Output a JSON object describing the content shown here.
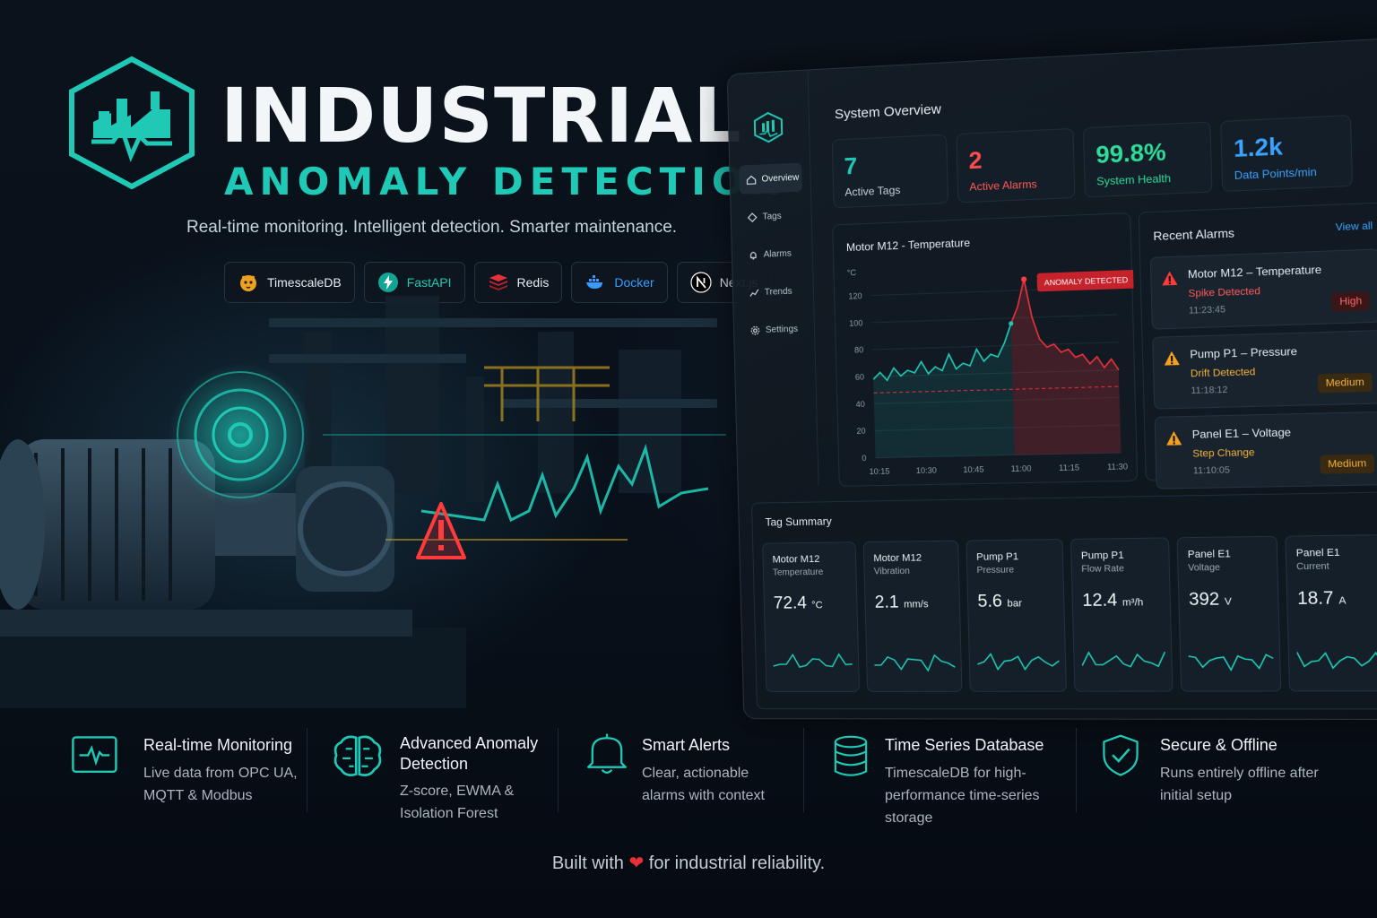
{
  "hero": {
    "title": "INDUSTRIAL",
    "subtitle": "ANOMALY DETECTION",
    "tagline": "Real-time monitoring. Intelligent detection. Smarter maintenance."
  },
  "tech_badges": [
    {
      "label": "TimescaleDB",
      "icon": "tiger-icon",
      "color": "#f0a020"
    },
    {
      "label": "FastAPI",
      "icon": "lightning-icon",
      "color": "#1fc9b6"
    },
    {
      "label": "Redis",
      "icon": "redis-stack-icon",
      "color": "#e8303c"
    },
    {
      "label": "Docker",
      "icon": "whale-icon",
      "color": "#3a9bff"
    },
    {
      "label": "Next.js",
      "icon": "nextjs-icon",
      "color": "#ffffff"
    }
  ],
  "dashboard": {
    "nav": [
      {
        "label": "Overview",
        "icon": "home-icon",
        "active": true
      },
      {
        "label": "Tags",
        "icon": "tag-icon",
        "active": false
      },
      {
        "label": "Alarms",
        "icon": "bell-icon",
        "active": false
      },
      {
        "label": "Trends",
        "icon": "trend-icon",
        "active": false
      },
      {
        "label": "Settings",
        "icon": "gear-icon",
        "active": false
      }
    ],
    "overview_title": "System Overview",
    "stats": [
      {
        "value": "7",
        "label": "Active Tags",
        "value_color": "#1fc9b6",
        "label_color": "#c6d1d8"
      },
      {
        "value": "2",
        "label": "Active Alarms",
        "value_color": "#ff4d4d",
        "label_color": "#ff5a5a"
      },
      {
        "value": "99.8%",
        "label": "System Health",
        "value_color": "#2fdc9a",
        "label_color": "#2fdc9a"
      },
      {
        "value": "1.2k",
        "label": "Data Points/min",
        "value_color": "#3aa3ff",
        "label_color": "#3aa3ff"
      }
    ],
    "chart_title": "Motor M12 - Temperature",
    "anomaly_label": "ANOMALY DETECTED",
    "alarms_title": "Recent Alarms",
    "view_all": "View all",
    "alarms": [
      {
        "name": "Motor M12 – Temperature",
        "detail": "Spike Detected",
        "time": "11:23:45",
        "severity": "High",
        "level": "high"
      },
      {
        "name": "Pump P1 – Pressure",
        "detail": "Drift Detected",
        "time": "11:18:12",
        "severity": "Medium",
        "level": "med"
      },
      {
        "name": "Panel E1 – Voltage",
        "detail": "Step Change",
        "time": "11:10:05",
        "severity": "Medium",
        "level": "med"
      }
    ],
    "tag_summary_title": "Tag Summary",
    "tags": [
      {
        "name": "Motor M12",
        "metric": "Temperature",
        "value": "72.4",
        "unit": "°C"
      },
      {
        "name": "Motor M12",
        "metric": "Vibration",
        "value": "2.1",
        "unit": "mm/s"
      },
      {
        "name": "Pump P1",
        "metric": "Pressure",
        "value": "5.6",
        "unit": "bar"
      },
      {
        "name": "Pump P1",
        "metric": "Flow Rate",
        "value": "12.4",
        "unit": "m³/h"
      },
      {
        "name": "Panel E1",
        "metric": "Voltage",
        "value": "392",
        "unit": "V"
      },
      {
        "name": "Panel E1",
        "metric": "Current",
        "value": "18.7",
        "unit": "A"
      }
    ]
  },
  "chart_data": {
    "type": "line",
    "title": "Motor M12 - Temperature",
    "ylabel": "°C",
    "ylim": [
      0,
      130
    ],
    "y_ticks": [
      0,
      20,
      40,
      60,
      80,
      100,
      120
    ],
    "x_ticks": [
      "10:15",
      "10:30",
      "10:45",
      "11:00",
      "11:15",
      "11:30"
    ],
    "threshold": 48,
    "anomaly_index": 24,
    "series": [
      {
        "values": [
          58,
          63,
          57,
          66,
          60,
          64,
          62,
          70,
          61,
          66,
          63,
          75,
          64,
          68,
          66,
          78,
          69,
          74,
          72,
          82,
          96,
          108,
          128,
          100,
          84,
          78,
          80,
          74,
          76,
          70,
          72,
          65,
          70,
          62,
          68,
          60
        ]
      }
    ]
  },
  "features": [
    {
      "title": "Real-time Monitoring",
      "desc": "Live data from OPC UA, MQTT & Modbus",
      "icon": "pulse-monitor-icon"
    },
    {
      "title": "Advanced Anomaly Detection",
      "desc": "Z-score, EWMA & Isolation Forest",
      "icon": "brain-icon"
    },
    {
      "title": "Smart Alerts",
      "desc": "Clear, actionable alarms with context",
      "icon": "bell-icon"
    },
    {
      "title": "Time Series Database",
      "desc": "TimescaleDB for high-performance time-series storage",
      "icon": "database-icon"
    },
    {
      "title": "Secure & Offline",
      "desc": "Runs entirely offline after initial setup",
      "icon": "shield-check-icon"
    }
  ],
  "footer": {
    "pre": "Built with",
    "post": "for industrial reliability."
  }
}
